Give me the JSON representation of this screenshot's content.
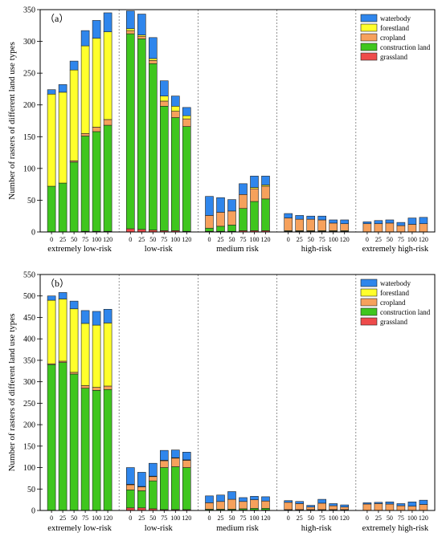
{
  "chart_data": [
    {
      "type": "bar",
      "stacked": true,
      "panel_label": "（a）",
      "ylabel": "Number of rasters of different land use types",
      "xlabel": "",
      "ylim": [
        0,
        350
      ],
      "y_ticks": [
        0,
        50,
        100,
        150,
        200,
        250,
        300,
        350
      ],
      "groups": [
        "extremely low-risk",
        "low-risk",
        "medium risk",
        "high-risk",
        "extremely high-risk"
      ],
      "categories": [
        "0",
        "25",
        "50",
        "75",
        "100",
        "120"
      ],
      "legend_position": "top-right",
      "series": [
        {
          "name": "grassland",
          "color": "#ee4b4b",
          "values": [
            [
              0,
              0,
              0,
              1,
              1,
              1
            ],
            [
              5,
              4,
              3,
              2,
              2,
              1
            ],
            [
              1,
              1,
              1,
              2,
              2,
              2
            ],
            [
              1,
              1,
              1,
              1,
              1,
              1
            ],
            [
              0,
              0,
              0,
              0,
              0,
              0
            ]
          ]
        },
        {
          "name": "construction land",
          "color": "#3fc61e",
          "values": [
            [
              72,
              77,
              110,
              150,
              157,
              167
            ],
            [
              307,
              300,
              262,
              196,
              178,
              165
            ],
            [
              5,
              8,
              10,
              35,
              46,
              50
            ],
            [
              1,
              1,
              1,
              1,
              1,
              1
            ],
            [
              0,
              0,
              0,
              0,
              0,
              0
            ]
          ]
        },
        {
          "name": "cropland",
          "color": "#f6a15c",
          "values": [
            [
              0,
              0,
              2,
              4,
              7,
              9
            ],
            [
              5,
              4,
              5,
              8,
              10,
              12
            ],
            [
              20,
              22,
              22,
              22,
              20,
              20
            ],
            [
              20,
              18,
              18,
              17,
              12,
              11
            ],
            [
              13,
              13,
              14,
              10,
              12,
              13
            ]
          ]
        },
        {
          "name": "forestland",
          "color": "#ffff2b",
          "values": [
            [
              145,
              143,
              143,
              138,
              140,
              138
            ],
            [
              3,
              2,
              3,
              8,
              8,
              5
            ],
            [
              0,
              0,
              0,
              0,
              2,
              2
            ],
            [
              0,
              0,
              0,
              0,
              0,
              0
            ],
            [
              0,
              0,
              0,
              0,
              0,
              0
            ]
          ]
        },
        {
          "name": "waterbody",
          "color": "#2f86ec",
          "values": [
            [
              7,
              12,
              14,
              24,
              28,
              30
            ],
            [
              28,
              33,
              33,
              24,
              16,
              13
            ],
            [
              30,
              23,
              18,
              17,
              18,
              14
            ],
            [
              7,
              6,
              5,
              6,
              5,
              6
            ],
            [
              3,
              5,
              5,
              5,
              10,
              10
            ]
          ]
        }
      ]
    },
    {
      "type": "bar",
      "stacked": true,
      "panel_label": "（b）",
      "ylabel": "Number of rasters of different land use types",
      "xlabel": "",
      "ylim": [
        0,
        550
      ],
      "y_ticks": [
        0,
        50,
        100,
        150,
        200,
        250,
        300,
        350,
        400,
        450,
        500,
        550
      ],
      "groups": [
        "extremely low-risk",
        "low-risk",
        "medium risk",
        "high-risk",
        "extremely high-risk"
      ],
      "categories": [
        "0",
        "25",
        "50",
        "75",
        "100",
        "120"
      ],
      "legend_position": "top-right",
      "series": [
        {
          "name": "grassland",
          "color": "#ee4b4b",
          "values": [
            [
              0,
              0,
              0,
              0,
              0,
              0
            ],
            [
              6,
              6,
              4,
              2,
              2,
              2
            ],
            [
              1,
              1,
              1,
              1,
              1,
              1
            ],
            [
              1,
              1,
              1,
              1,
              1,
              1
            ],
            [
              0,
              0,
              0,
              0,
              0,
              0
            ]
          ]
        },
        {
          "name": "construction land",
          "color": "#3fc61e",
          "values": [
            [
              340,
              345,
              318,
              285,
              280,
              282
            ],
            [
              42,
              40,
              65,
              98,
              100,
              98
            ],
            [
              2,
              2,
              2,
              3,
              4,
              4
            ],
            [
              1,
              1,
              1,
              1,
              1,
              1
            ],
            [
              0,
              0,
              0,
              0,
              0,
              0
            ]
          ]
        },
        {
          "name": "cropland",
          "color": "#f6a15c",
          "values": [
            [
              2,
              3,
              4,
              6,
              7,
              8
            ],
            [
              12,
              9,
              10,
              16,
              20,
              17
            ],
            [
              15,
              18,
              23,
              17,
              20,
              17
            ],
            [
              17,
              14,
              6,
              15,
              9,
              6
            ],
            [
              15,
              16,
              15,
              11,
              10,
              14
            ]
          ]
        },
        {
          "name": "forestland",
          "color": "#ffff2b",
          "values": [
            [
              148,
              145,
              148,
              145,
              145,
              147
            ],
            [
              1,
              1,
              1,
              1,
              1,
              1
            ],
            [
              0,
              0,
              0,
              0,
              0,
              0
            ],
            [
              0,
              0,
              0,
              0,
              0,
              0
            ],
            [
              0,
              0,
              0,
              0,
              0,
              0
            ]
          ]
        },
        {
          "name": "waterbody",
          "color": "#2f86ec",
          "values": [
            [
              10,
              15,
              18,
              30,
              32,
              32
            ],
            [
              39,
              33,
              30,
              23,
              18,
              18
            ],
            [
              16,
              15,
              18,
              9,
              8,
              10
            ],
            [
              4,
              5,
              4,
              9,
              5,
              5
            ],
            [
              3,
              3,
              5,
              5,
              10,
              10
            ]
          ]
        }
      ]
    }
  ]
}
